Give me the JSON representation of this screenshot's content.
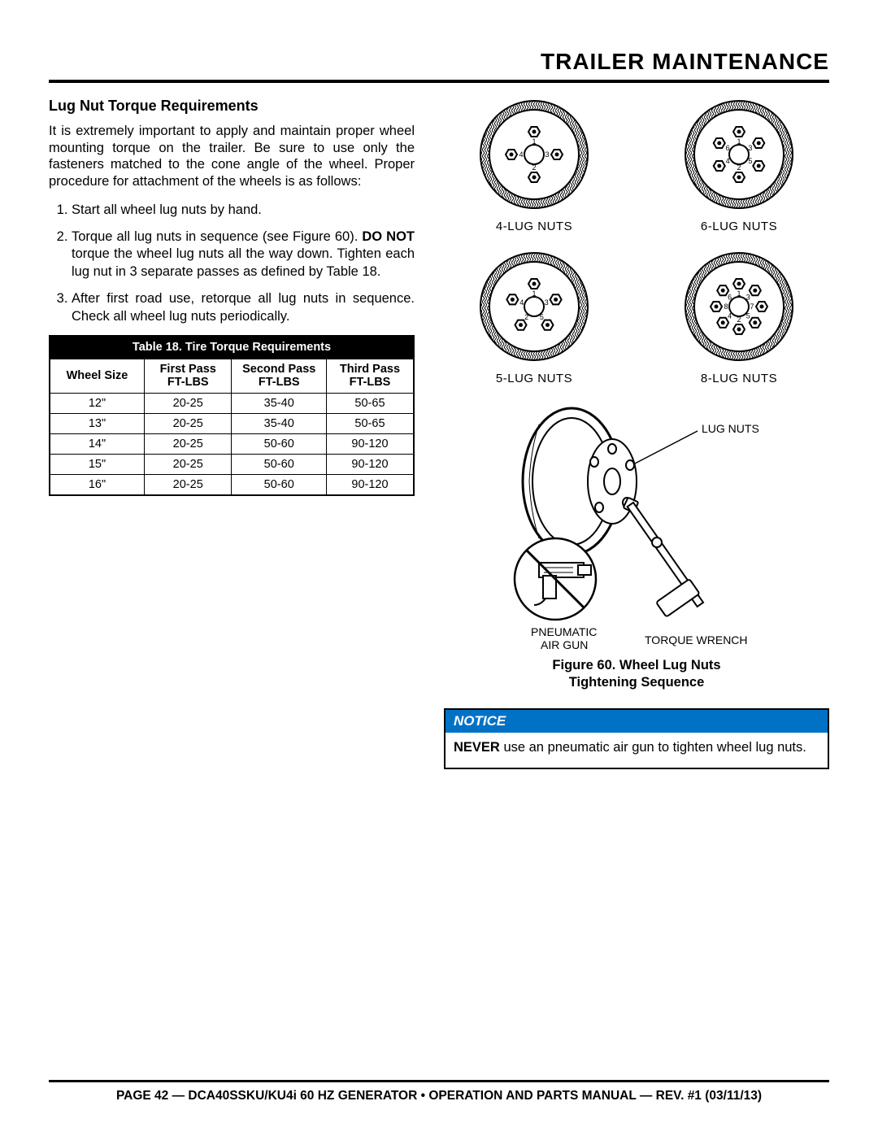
{
  "page_title": "TRAILER MAINTENANCE",
  "section_heading": "Lug Nut Torque Requirements",
  "intro_paragraph": "It is extremely important to apply and maintain proper wheel mounting torque on the trailer. Be sure to use only the fasteners matched to the cone angle of the wheel. Proper procedure for attachment of the wheels is as follows:",
  "steps": {
    "s1": "Start all wheel lug nuts by hand.",
    "s2_a": "Torque all lug nuts in sequence (see Figure 60). ",
    "s2_b": "DO NOT",
    "s2_c": " torque the wheel lug nuts all the way down. Tighten each lug nut in 3 separate passes as defined by Table 18.",
    "s3": "After first road use, retorque all lug nuts in sequence. Check all wheel lug nuts periodically."
  },
  "table": {
    "title": "Table 18. Tire Torque Requirements",
    "columns": [
      "Wheel Size",
      "First Pass FT-LBS",
      "Second Pass FT-LBS",
      "Third Pass FT-LBS"
    ],
    "headers": {
      "c0": "Wheel Size",
      "c1a": "First Pass",
      "c1b": "FT-LBS",
      "c2a": "Second Pass",
      "c2b": "FT-LBS",
      "c3a": "Third Pass",
      "c3b": "FT-LBS"
    },
    "rows": [
      [
        "12\"",
        "20-25",
        "35-40",
        "50-65"
      ],
      [
        "13\"",
        "20-25",
        "35-40",
        "50-65"
      ],
      [
        "14\"",
        "20-25",
        "50-60",
        "90-120"
      ],
      [
        "15\"",
        "20-25",
        "50-60",
        "90-120"
      ],
      [
        "16\"",
        "20-25",
        "50-60",
        "90-120"
      ]
    ],
    "col_widths": [
      "26%",
      "24%",
      "26%",
      "24%"
    ]
  },
  "wheels": {
    "w4": {
      "label": "4-LUG NUTS",
      "count": 4,
      "sequence": [
        1,
        3,
        2,
        4
      ]
    },
    "w6": {
      "label": "6-LUG NUTS",
      "count": 6,
      "sequence": [
        1,
        3,
        5,
        2,
        4,
        6
      ]
    },
    "w5": {
      "label": "5-LUG NUTS",
      "count": 5,
      "sequence": [
        1,
        3,
        5,
        2,
        4
      ]
    },
    "w8": {
      "label": "8-LUG NUTS",
      "count": 8,
      "sequence": [
        1,
        3,
        7,
        5,
        2,
        4,
        8,
        6
      ]
    }
  },
  "tool_labels": {
    "lug_nuts": "LUG NUTS",
    "pneumatic": "PNEUMATIC",
    "air_gun": "AIR GUN",
    "torque": "TORQUE WRENCH"
  },
  "figure_caption_l1": "Figure 60. Wheel Lug Nuts",
  "figure_caption_l2": "Tightening Sequence",
  "notice": {
    "head": "NOTICE",
    "bold": "NEVER",
    "body": " use an pneumatic air gun to tighten wheel lug nuts."
  },
  "footer": "PAGE 42 — DCA40SSKU/KU4i 60 HZ GENERATOR • OPERATION AND PARTS MANUAL — REV. #1 (03/11/13)",
  "colors": {
    "notice_bg": "#0072c6",
    "rule": "#000000"
  }
}
